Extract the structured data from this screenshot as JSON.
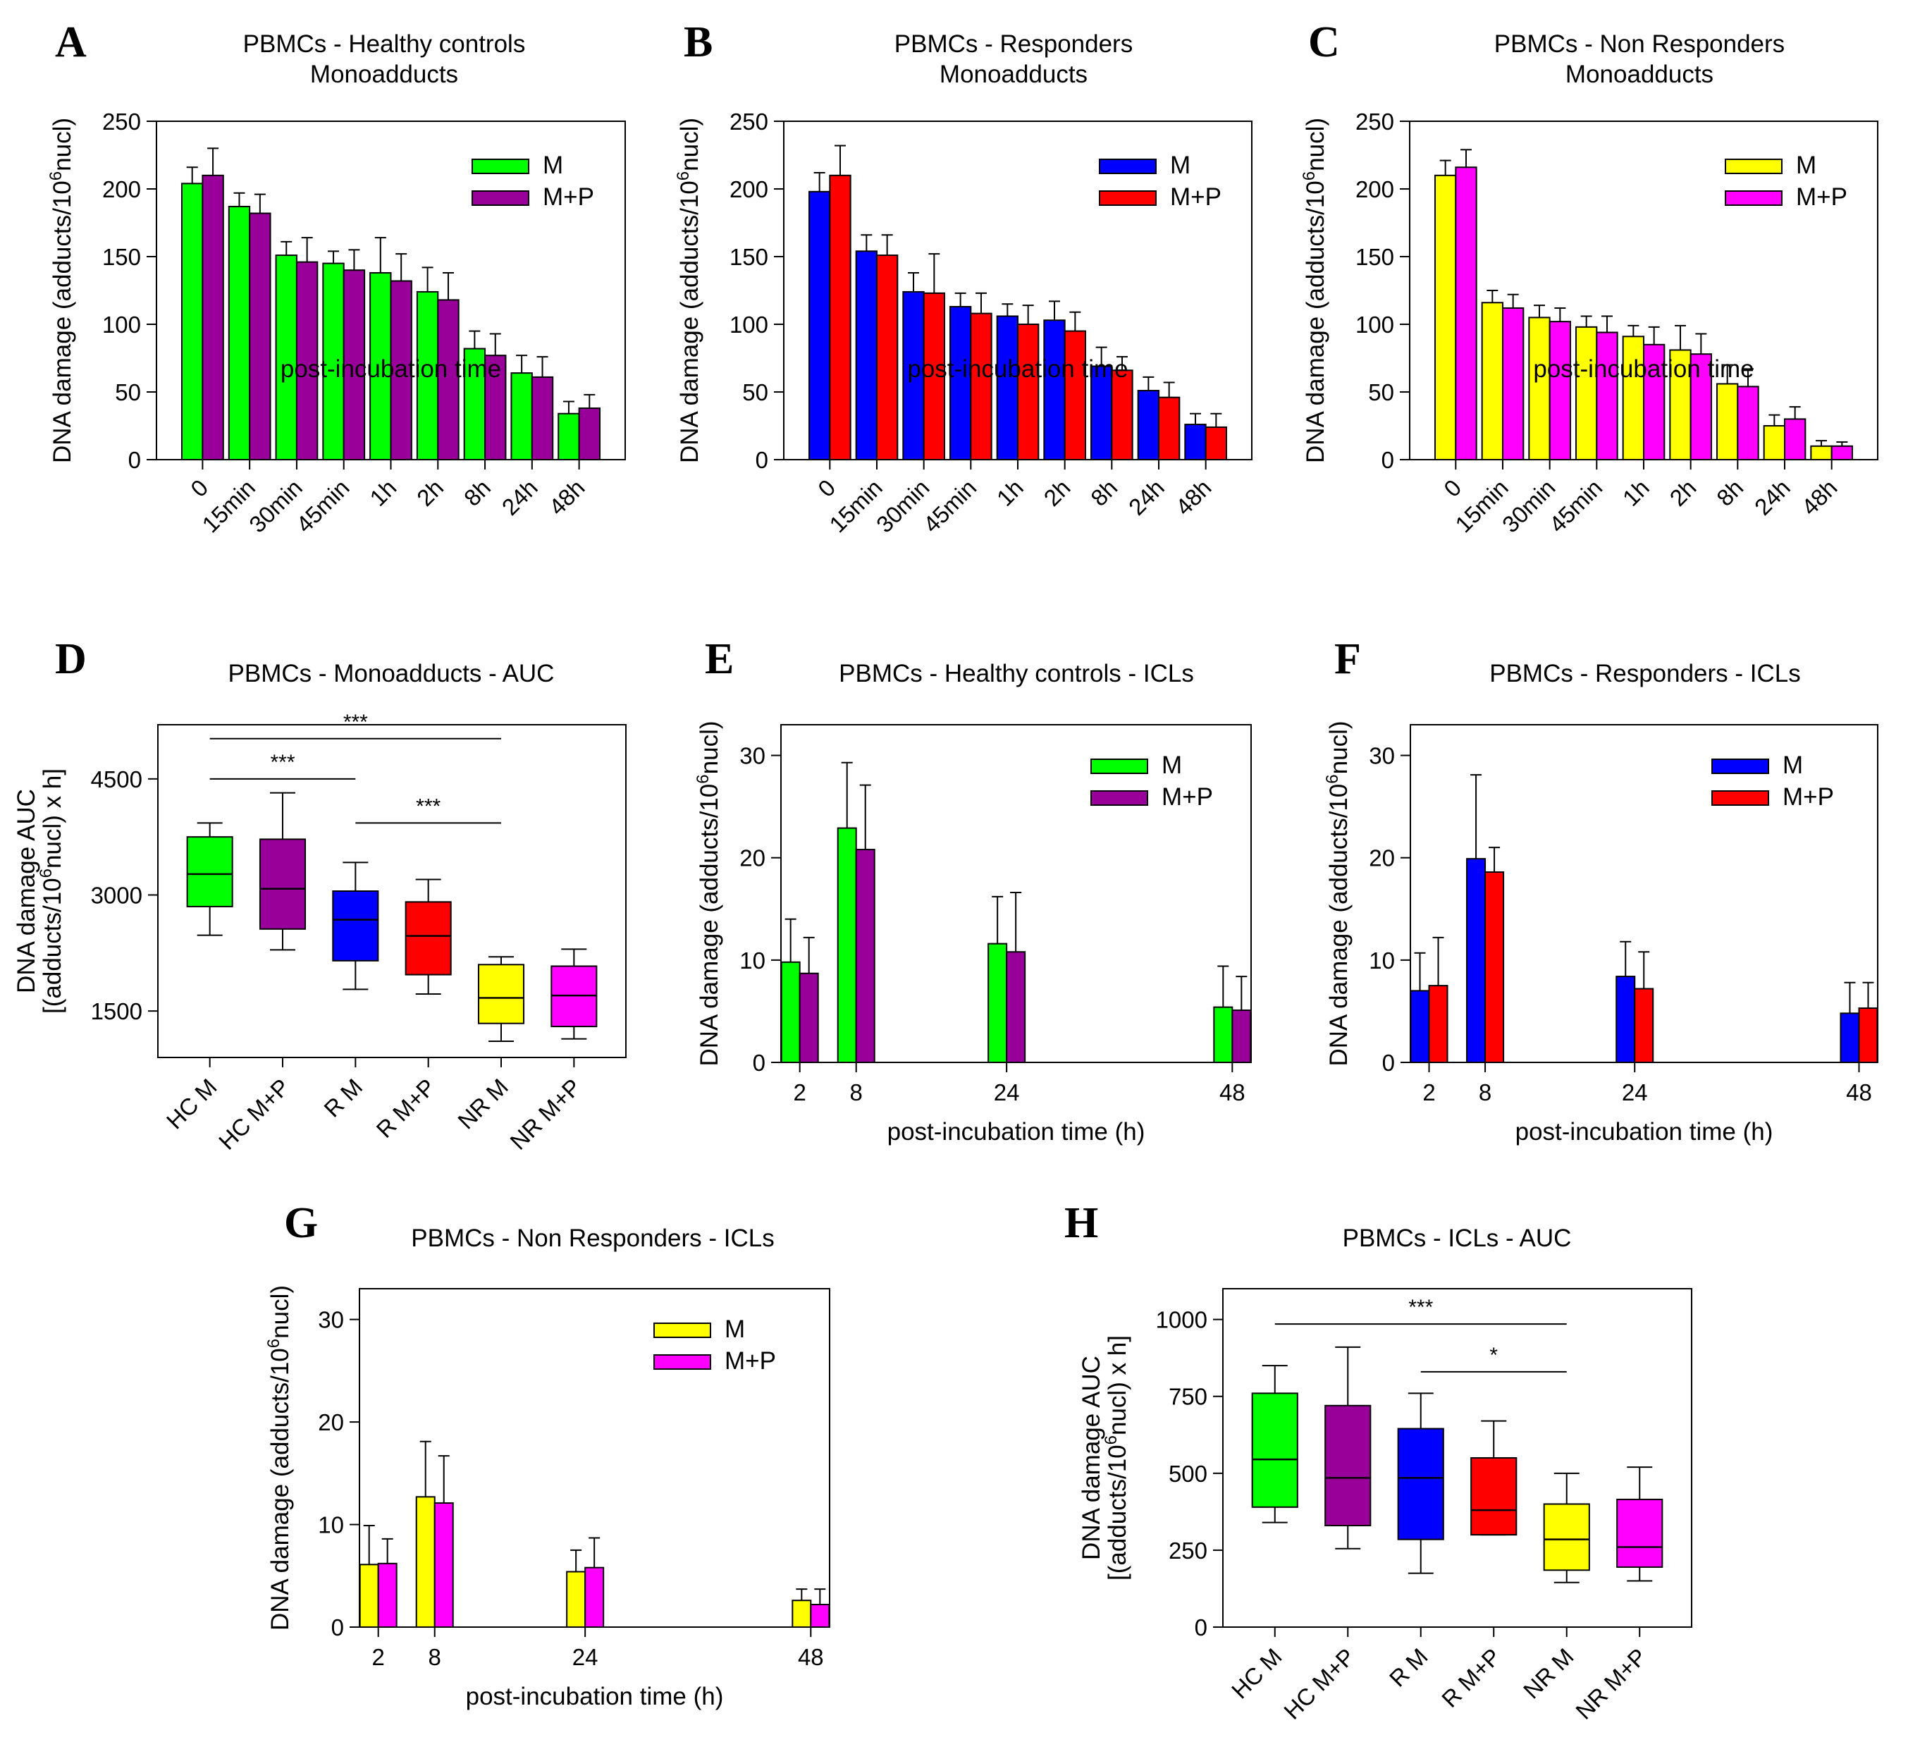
{
  "chart_data": [
    {
      "id": "A",
      "type": "bar",
      "panel_label": "A",
      "title": "PBMCs - Healthy controls",
      "subtitle": "Monoadducts",
      "xlabel": "post-incubation time",
      "ylabel_prefix": "DNA damage (adducts/10",
      "ylabel_sup": "6",
      "ylabel_suffix": "nucl)",
      "ylim": [
        0,
        250
      ],
      "yticks": [
        "0",
        "50",
        "100",
        "150",
        "200",
        "250"
      ],
      "categories": [
        "0",
        "15min",
        "30min",
        "45min",
        "1h",
        "2h",
        "8h",
        "24h",
        "48h"
      ],
      "legend_position": "top-right",
      "series": [
        {
          "name": "M",
          "color": "#00ff00",
          "values": [
            204,
            187,
            151,
            145,
            138,
            124,
            82,
            64,
            34
          ],
          "errors": [
            12,
            10,
            10,
            9,
            26,
            18,
            13,
            13,
            9
          ]
        },
        {
          "name": "M+P",
          "color": "#990099",
          "values": [
            210,
            182,
            146,
            140,
            132,
            118,
            77,
            61,
            38
          ],
          "errors": [
            20,
            14,
            18,
            15,
            20,
            20,
            16,
            15,
            10
          ]
        }
      ]
    },
    {
      "id": "B",
      "type": "bar",
      "panel_label": "B",
      "title": "PBMCs - Responders",
      "subtitle": "Monoadducts",
      "xlabel": "post-incubation time",
      "ylabel_prefix": "DNA damage (adducts/10",
      "ylabel_sup": "6",
      "ylabel_suffix": "nucl)",
      "ylim": [
        0,
        250
      ],
      "yticks": [
        "0",
        "50",
        "100",
        "150",
        "200",
        "250"
      ],
      "categories": [
        "0",
        "15min",
        "30min",
        "45min",
        "1h",
        "2h",
        "8h",
        "24h",
        "48h"
      ],
      "legend_position": "top-right",
      "series": [
        {
          "name": "M",
          "color": "#0000ff",
          "values": [
            198,
            154,
            124,
            113,
            106,
            103,
            69,
            51,
            26
          ],
          "errors": [
            14,
            12,
            14,
            10,
            9,
            14,
            14,
            10,
            8
          ]
        },
        {
          "name": "M+P",
          "color": "#ff0000",
          "values": [
            210,
            151,
            123,
            108,
            100,
            95,
            66,
            46,
            24
          ],
          "errors": [
            22,
            15,
            29,
            15,
            14,
            14,
            10,
            11,
            10
          ]
        }
      ]
    },
    {
      "id": "C",
      "type": "bar",
      "panel_label": "C",
      "title": "PBMCs - Non Responders",
      "subtitle": "Monoadducts",
      "xlabel": "post-incubation time",
      "ylabel_prefix": "DNA damage (adducts/10",
      "ylabel_sup": "6",
      "ylabel_suffix": "nucl)",
      "ylim": [
        0,
        250
      ],
      "yticks": [
        "0",
        "50",
        "100",
        "150",
        "200",
        "250"
      ],
      "categories": [
        "0",
        "15min",
        "30min",
        "45min",
        "1h",
        "2h",
        "8h",
        "24h",
        "48h"
      ],
      "legend_position": "top-right",
      "series": [
        {
          "name": "M",
          "color": "#ffff00",
          "values": [
            210,
            116,
            105,
            98,
            91,
            81,
            56,
            25,
            10
          ],
          "errors": [
            11,
            9,
            9,
            8,
            8,
            18,
            14,
            8,
            4
          ]
        },
        {
          "name": "M+P",
          "color": "#ff00ff",
          "values": [
            216,
            112,
            102,
            94,
            85,
            78,
            54,
            30,
            10
          ],
          "errors": [
            13,
            10,
            10,
            12,
            13,
            15,
            13,
            9,
            3
          ]
        }
      ]
    },
    {
      "id": "D",
      "type": "box",
      "panel_label": "D",
      "title": "PBMCs - Monoadducts - AUC",
      "ylabel_line1": "DNA damage AUC",
      "ylabel_line2_prefix": "[(adducts/10",
      "ylabel_sup": "6",
      "ylabel_line2_suffix": "nucl) x h]",
      "ylim": [
        900,
        5200
      ],
      "yticks": [
        1500,
        3000,
        4500
      ],
      "ytick_labels": [
        "1500",
        "3000",
        "4500"
      ],
      "categories": [
        "HC M",
        "HC M+P",
        "R M",
        "R M+P",
        "NR M",
        "NR M+P"
      ],
      "colors": [
        "#00ff00",
        "#990099",
        "#0000ff",
        "#ff0000",
        "#ffff00",
        "#ff00ff"
      ],
      "boxes": [
        {
          "min": 2480,
          "q1": 2850,
          "median": 3270,
          "q3": 3750,
          "max": 3930
        },
        {
          "min": 2290,
          "q1": 2560,
          "median": 3080,
          "q3": 3720,
          "max": 4320
        },
        {
          "min": 1780,
          "q1": 2150,
          "median": 2680,
          "q3": 3050,
          "max": 3420
        },
        {
          "min": 1720,
          "q1": 1970,
          "median": 2470,
          "q3": 2910,
          "max": 3200
        },
        {
          "min": 1110,
          "q1": 1340,
          "median": 1670,
          "q3": 2100,
          "max": 2200
        },
        {
          "min": 1140,
          "q1": 1300,
          "median": 1700,
          "q3": 2080,
          "max": 2300
        }
      ],
      "significance": [
        {
          "from": 0,
          "to": 4,
          "label": "***",
          "level": 5020
        },
        {
          "from": 0,
          "to": 2,
          "label": "***",
          "level": 4500
        },
        {
          "from": 2,
          "to": 4,
          "label": "***",
          "level": 3930
        }
      ]
    },
    {
      "id": "E",
      "type": "bar",
      "panel_label": "E",
      "title": "PBMCs - Healthy controls - ICLs",
      "xlabel": "post-incubation time (h)",
      "ylabel_prefix": "DNA damage (adducts/10",
      "ylabel_sup": "6",
      "ylabel_suffix": "nucl)",
      "ylim": [
        0,
        33
      ],
      "yticks": [
        "0",
        "10",
        "20",
        "30"
      ],
      "ytick_values": [
        0,
        10,
        20,
        30
      ],
      "xlim": [
        0,
        50
      ],
      "x": [
        2,
        8,
        24,
        48
      ],
      "categories": [
        "2",
        "8",
        "24",
        "48"
      ],
      "legend_position": "top-right",
      "series": [
        {
          "name": "M",
          "color": "#00ff00",
          "values": [
            9.8,
            22.9,
            11.6,
            5.4
          ],
          "errors": [
            4.2,
            6.4,
            4.6,
            4.0
          ]
        },
        {
          "name": "M+P",
          "color": "#990099",
          "values": [
            8.7,
            20.8,
            10.8,
            5.1
          ],
          "errors": [
            3.5,
            6.3,
            5.8,
            3.3
          ]
        }
      ]
    },
    {
      "id": "F",
      "type": "bar",
      "panel_label": "F",
      "title": "PBMCs - Responders - ICLs",
      "xlabel": "post-incubation time (h)",
      "ylabel_prefix": "DNA damage (adducts/10",
      "ylabel_sup": "6",
      "ylabel_suffix": "nucl)",
      "ylim": [
        0,
        33
      ],
      "yticks": [
        "0",
        "10",
        "20",
        "30"
      ],
      "ytick_values": [
        0,
        10,
        20,
        30
      ],
      "xlim": [
        0,
        50
      ],
      "x": [
        2,
        8,
        24,
        48
      ],
      "categories": [
        "2",
        "8",
        "24",
        "48"
      ],
      "legend_position": "top-right",
      "series": [
        {
          "name": "M",
          "color": "#0000ff",
          "values": [
            7.0,
            19.9,
            8.4,
            4.8
          ],
          "errors": [
            3.7,
            8.2,
            3.4,
            3.0
          ]
        },
        {
          "name": "M+P",
          "color": "#ff0000",
          "values": [
            7.5,
            18.6,
            7.2,
            5.3
          ],
          "errors": [
            4.7,
            2.4,
            3.6,
            2.5
          ]
        }
      ]
    },
    {
      "id": "G",
      "type": "bar",
      "panel_label": "G",
      "title": "PBMCs - Non Responders - ICLs",
      "xlabel": "post-incubation time (h)",
      "ylabel_prefix": "DNA damage (adducts/10",
      "ylabel_sup": "6",
      "ylabel_suffix": "nucl)",
      "ylim": [
        0,
        33
      ],
      "yticks": [
        "0",
        "10",
        "20",
        "30"
      ],
      "ytick_values": [
        0,
        10,
        20,
        30
      ],
      "xlim": [
        0,
        50
      ],
      "x": [
        2,
        8,
        24,
        48
      ],
      "categories": [
        "2",
        "8",
        "24",
        "48"
      ],
      "legend_position": "top-right",
      "series": [
        {
          "name": "M",
          "color": "#ffff00",
          "values": [
            6.1,
            12.7,
            5.4,
            2.6
          ],
          "errors": [
            3.8,
            5.4,
            2.1,
            1.1
          ]
        },
        {
          "name": "M+P",
          "color": "#ff00ff",
          "values": [
            6.2,
            12.1,
            5.8,
            2.2
          ],
          "errors": [
            2.4,
            4.6,
            2.9,
            1.5
          ]
        }
      ]
    },
    {
      "id": "H",
      "type": "box",
      "panel_label": "H",
      "title": "PBMCs - ICLs - AUC",
      "ylabel_line1": "DNA damage AUC",
      "ylabel_line2_prefix": "[(adducts/10",
      "ylabel_sup": "6",
      "ylabel_line2_suffix": "nucl) x h]",
      "ylim": [
        0,
        1100
      ],
      "yticks": [
        0,
        250,
        500,
        750,
        1000
      ],
      "ytick_labels": [
        "0",
        "250",
        "500",
        "750",
        "1000"
      ],
      "categories": [
        "HC M",
        "HC M+P",
        "R M",
        "R M+P",
        "NR M",
        "NR M+P"
      ],
      "colors": [
        "#00ff00",
        "#990099",
        "#0000ff",
        "#ff0000",
        "#ffff00",
        "#ff00ff"
      ],
      "boxes": [
        {
          "min": 340,
          "q1": 390,
          "median": 545,
          "q3": 760,
          "max": 850
        },
        {
          "min": 255,
          "q1": 330,
          "median": 485,
          "q3": 720,
          "max": 910
        },
        {
          "min": 175,
          "q1": 285,
          "median": 485,
          "q3": 645,
          "max": 760
        },
        {
          "min": 300,
          "q1": 300,
          "median": 380,
          "q3": 550,
          "max": 670
        },
        {
          "min": 145,
          "q1": 185,
          "median": 285,
          "q3": 400,
          "max": 500
        },
        {
          "min": 150,
          "q1": 195,
          "median": 260,
          "q3": 415,
          "max": 520
        }
      ],
      "significance": [
        {
          "from": 0,
          "to": 4,
          "label": "***",
          "level": 985
        },
        {
          "from": 2,
          "to": 4,
          "label": "*",
          "level": 830
        }
      ]
    }
  ]
}
